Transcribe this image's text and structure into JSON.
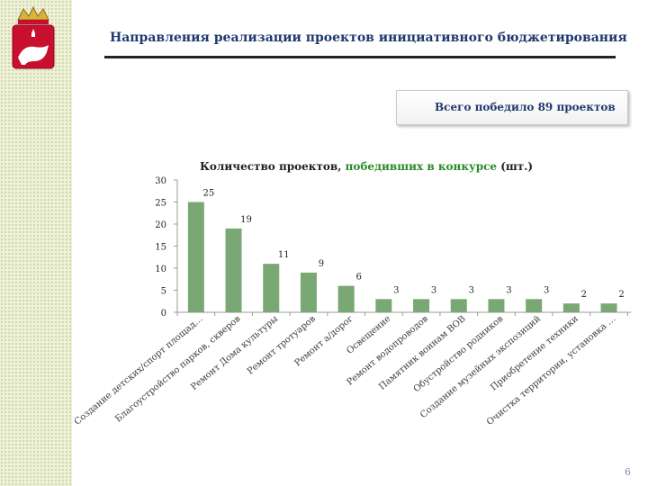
{
  "header": {
    "title": "Направления реализации проектов инициативного бюджетирования"
  },
  "summary": {
    "total_text": "Всего победило 89 проектов"
  },
  "chart_title": {
    "part1": "Количество проектов,",
    "part2": " победивших в конкурсе",
    "part3": " (шт.)"
  },
  "colors": {
    "bar": "#7aa874",
    "title": "#1f3a6e",
    "highlight": "#2a8a2a"
  },
  "chart_data": {
    "type": "bar",
    "title": "Количество проектов, победивших в конкурсе (шт.)",
    "categories": [
      "Создание детских/спорт площад…",
      "Благоустройство парков, скверов",
      "Ремонт Дома культуры",
      "Ремонт тротуаров",
      "Ремонт а/дорог",
      "Освещение",
      "Ремонт водопроводов",
      "Памятник воинам ВОВ",
      "Обустройство родников",
      "Создание музейных экспозиций",
      "Приобретение техники",
      "Очистка территории, установка …"
    ],
    "values": [
      25,
      19,
      11,
      9,
      6,
      3,
      3,
      3,
      3,
      3,
      2,
      2
    ],
    "yticks": [
      0,
      5,
      10,
      15,
      20,
      25,
      30
    ],
    "ylim": [
      0,
      30
    ],
    "xlabel": "",
    "ylabel": "",
    "grid": false,
    "legend": "none"
  },
  "footer": {
    "page_number": "6"
  }
}
